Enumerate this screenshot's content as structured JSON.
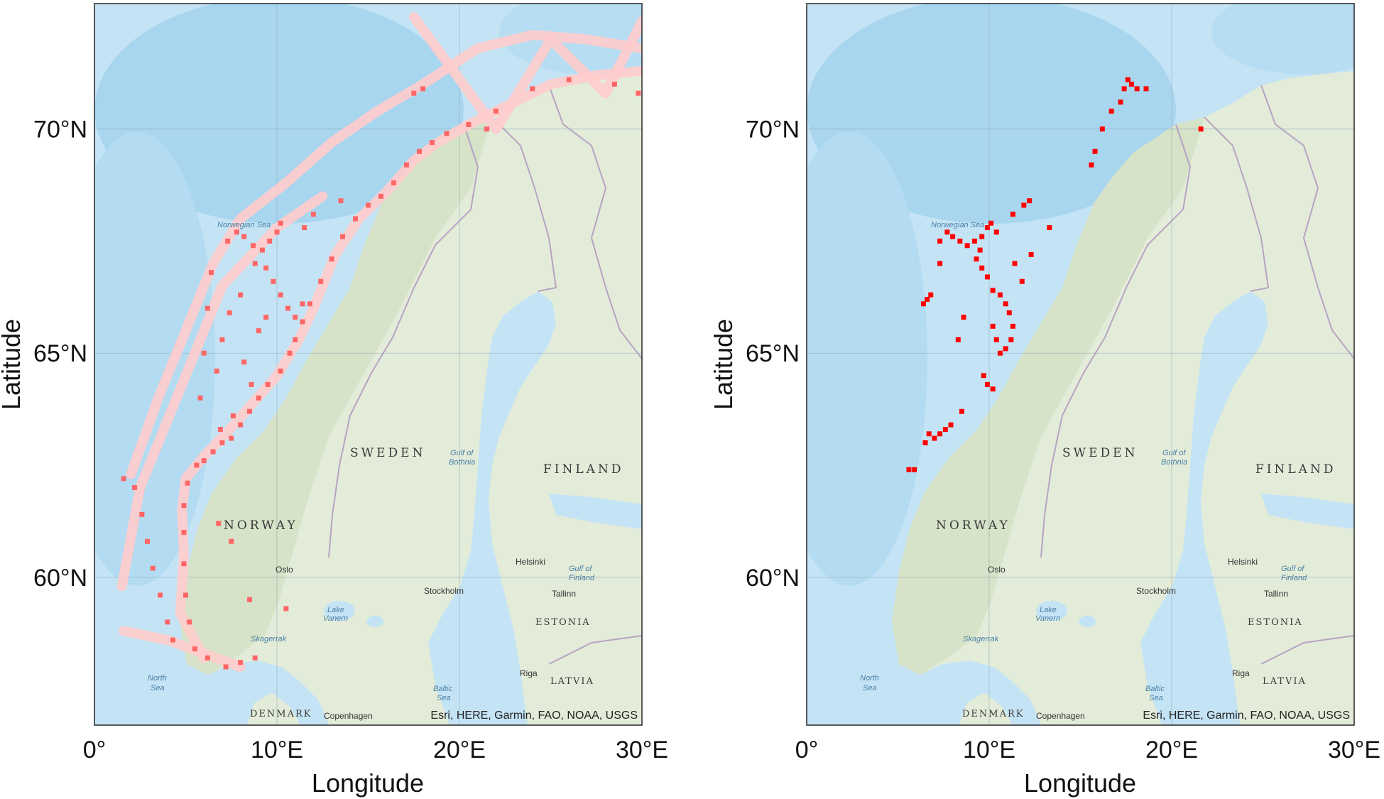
{
  "chart_data": [
    {
      "type": "scatter",
      "name": "left-map",
      "color": "#ff6666",
      "track_color": "#ffcccc",
      "xlabel": "Longitude",
      "ylabel": "Latitude",
      "xlim": [
        0,
        30
      ],
      "ylim": [
        56.7,
        72.8
      ],
      "xticks": [
        {
          "v": 0,
          "label": "0°"
        },
        {
          "v": 10,
          "label": "10°E"
        },
        {
          "v": 20,
          "label": "20°E"
        },
        {
          "v": 30,
          "label": "30°E"
        }
      ],
      "yticks": [
        {
          "v": 60,
          "label": "60°N"
        },
        {
          "v": 65,
          "label": "65°N"
        },
        {
          "v": 70,
          "label": "70°N"
        }
      ],
      "grid": true,
      "attribution": "Esri, HERE, Garmin, FAO, NOAA, USGS",
      "tracks": [
        [
          [
            6.0,
            58.2
          ],
          [
            4.7,
            59.2
          ],
          [
            4.9,
            60.5
          ],
          [
            4.8,
            61.5
          ],
          [
            5.0,
            62.2
          ],
          [
            6.0,
            62.7
          ],
          [
            7.2,
            63.2
          ],
          [
            8.5,
            63.8
          ],
          [
            10.0,
            64.5
          ],
          [
            11.2,
            65.3
          ],
          [
            12.0,
            66.0
          ],
          [
            13.2,
            67.2
          ],
          [
            14.5,
            68.0
          ],
          [
            16.0,
            68.6
          ],
          [
            17.5,
            69.3
          ],
          [
            18.8,
            69.7
          ],
          [
            20.5,
            70.1
          ],
          [
            22.5,
            70.5
          ],
          [
            25.0,
            71.0
          ],
          [
            27.5,
            71.2
          ],
          [
            30.0,
            71.3
          ]
        ],
        [
          [
            2.0,
            62.3
          ],
          [
            3.5,
            64.0
          ],
          [
            5.0,
            65.5
          ],
          [
            6.5,
            67.0
          ],
          [
            8.0,
            68.0
          ],
          [
            10.5,
            68.8
          ],
          [
            13.0,
            69.7
          ],
          [
            15.5,
            70.4
          ],
          [
            18.0,
            71.0
          ],
          [
            21.0,
            71.8
          ],
          [
            24.0,
            72.1
          ],
          [
            27.0,
            72.0
          ],
          [
            30.0,
            71.8
          ]
        ],
        [
          [
            1.5,
            59.8
          ],
          [
            2.5,
            62.0
          ],
          [
            5.5,
            65.0
          ],
          [
            7.0,
            66.5
          ],
          [
            10.0,
            67.8
          ],
          [
            12.5,
            68.5
          ]
        ],
        [
          [
            1.6,
            58.8
          ],
          [
            4.0,
            58.6
          ],
          [
            6.0,
            58.3
          ],
          [
            8.0,
            58.0
          ]
        ],
        [
          [
            17.5,
            72.5
          ],
          [
            22.0,
            70.0
          ],
          [
            25.0,
            72.0
          ],
          [
            28.0,
            70.8
          ],
          [
            30.0,
            72.4
          ]
        ]
      ],
      "points": [
        [
          5.5,
          58.4
        ],
        [
          6.2,
          58.2
        ],
        [
          7.2,
          58.0
        ],
        [
          8.0,
          58.1
        ],
        [
          8.8,
          58.2
        ],
        [
          5.2,
          59.0
        ],
        [
          5.0,
          59.6
        ],
        [
          4.9,
          60.3
        ],
        [
          4.9,
          61.0
        ],
        [
          4.9,
          61.6
        ],
        [
          5.1,
          62.1
        ],
        [
          5.6,
          62.5
        ],
        [
          6.0,
          62.6
        ],
        [
          6.5,
          62.8
        ],
        [
          7.0,
          63.0
        ],
        [
          7.5,
          63.1
        ],
        [
          8.0,
          63.4
        ],
        [
          8.5,
          63.7
        ],
        [
          9.0,
          64.0
        ],
        [
          9.5,
          64.3
        ],
        [
          10.2,
          64.6
        ],
        [
          10.7,
          65.0
        ],
        [
          11.0,
          65.3
        ],
        [
          11.4,
          65.7
        ],
        [
          11.8,
          66.1
        ],
        [
          12.4,
          66.6
        ],
        [
          13.0,
          67.1
        ],
        [
          13.6,
          67.6
        ],
        [
          14.3,
          68.0
        ],
        [
          15.0,
          68.3
        ],
        [
          15.7,
          68.5
        ],
        [
          16.4,
          68.8
        ],
        [
          17.1,
          69.2
        ],
        [
          17.8,
          69.5
        ],
        [
          18.5,
          69.7
        ],
        [
          19.3,
          69.9
        ],
        [
          20.5,
          70.1
        ],
        [
          21.5,
          70.0
        ],
        [
          17.5,
          70.8
        ],
        [
          18.0,
          70.9
        ],
        [
          22.0,
          70.4
        ],
        [
          24.0,
          70.9
        ],
        [
          26.0,
          71.1
        ],
        [
          28.5,
          71.0
        ],
        [
          29.8,
          70.8
        ],
        [
          7.3,
          67.5
        ],
        [
          7.8,
          67.7
        ],
        [
          8.2,
          67.6
        ],
        [
          8.7,
          67.4
        ],
        [
          9.2,
          67.3
        ],
        [
          9.6,
          67.5
        ],
        [
          10.0,
          67.7
        ],
        [
          10.2,
          67.9
        ],
        [
          8.8,
          67.0
        ],
        [
          9.4,
          66.9
        ],
        [
          9.8,
          66.6
        ],
        [
          10.2,
          66.3
        ],
        [
          10.6,
          66.0
        ],
        [
          11.0,
          65.8
        ],
        [
          11.4,
          66.1
        ],
        [
          8.0,
          66.3
        ],
        [
          7.4,
          65.9
        ],
        [
          7.0,
          65.3
        ],
        [
          6.7,
          64.6
        ],
        [
          8.2,
          64.8
        ],
        [
          8.6,
          64.3
        ],
        [
          9.0,
          65.5
        ],
        [
          9.4,
          65.8
        ],
        [
          6.4,
          66.8
        ],
        [
          6.2,
          66.0
        ],
        [
          6.0,
          65.0
        ],
        [
          5.8,
          64.0
        ],
        [
          6.9,
          63.3
        ],
        [
          7.6,
          63.6
        ],
        [
          1.6,
          62.2
        ],
        [
          2.2,
          62.0
        ],
        [
          2.6,
          61.4
        ],
        [
          2.9,
          60.8
        ],
        [
          3.2,
          60.2
        ],
        [
          3.6,
          59.6
        ],
        [
          4.0,
          59.0
        ],
        [
          4.3,
          58.6
        ],
        [
          12.0,
          68.1
        ],
        [
          13.5,
          68.4
        ],
        [
          11.5,
          67.8
        ],
        [
          8.5,
          59.5
        ],
        [
          10.5,
          59.3
        ],
        [
          6.8,
          61.2
        ],
        [
          7.5,
          60.8
        ]
      ]
    },
    {
      "type": "scatter",
      "name": "right-map",
      "color": "#ff0000",
      "xlabel": "Longitude",
      "ylabel": "Latitude",
      "xlim": [
        0,
        30
      ],
      "ylim": [
        56.7,
        72.8
      ],
      "xticks": [
        {
          "v": 0,
          "label": "0°"
        },
        {
          "v": 10,
          "label": "10°E"
        },
        {
          "v": 20,
          "label": "20°E"
        },
        {
          "v": 30,
          "label": "30°E"
        }
      ],
      "yticks": [
        {
          "v": 60,
          "label": "60°N"
        },
        {
          "v": 65,
          "label": "65°N"
        },
        {
          "v": 70,
          "label": "70°N"
        }
      ],
      "grid": true,
      "attribution": "Esri, HERE, Garmin, FAO, NOAA, USGS",
      "points": [
        [
          17.6,
          71.1
        ],
        [
          17.8,
          71.0
        ],
        [
          18.1,
          70.9
        ],
        [
          18.6,
          70.9
        ],
        [
          17.4,
          70.9
        ],
        [
          17.2,
          70.6
        ],
        [
          16.7,
          70.4
        ],
        [
          16.2,
          70.0
        ],
        [
          15.8,
          69.5
        ],
        [
          15.6,
          69.2
        ],
        [
          21.6,
          70.0
        ],
        [
          12.2,
          68.4
        ],
        [
          11.9,
          68.3
        ],
        [
          11.3,
          68.1
        ],
        [
          13.3,
          67.8
        ],
        [
          12.3,
          67.2
        ],
        [
          11.4,
          67.0
        ],
        [
          11.8,
          66.6
        ],
        [
          7.3,
          67.5
        ],
        [
          7.7,
          67.7
        ],
        [
          8.0,
          67.6
        ],
        [
          8.4,
          67.5
        ],
        [
          8.8,
          67.4
        ],
        [
          9.2,
          67.5
        ],
        [
          9.6,
          67.6
        ],
        [
          9.9,
          67.8
        ],
        [
          10.1,
          67.9
        ],
        [
          9.3,
          67.1
        ],
        [
          9.6,
          66.9
        ],
        [
          9.9,
          66.7
        ],
        [
          10.2,
          66.4
        ],
        [
          10.6,
          66.3
        ],
        [
          10.9,
          66.1
        ],
        [
          11.1,
          65.9
        ],
        [
          11.3,
          65.6
        ],
        [
          11.2,
          65.3
        ],
        [
          10.9,
          65.1
        ],
        [
          10.6,
          65.0
        ],
        [
          10.4,
          65.3
        ],
        [
          10.2,
          65.6
        ],
        [
          9.7,
          64.5
        ],
        [
          9.9,
          64.3
        ],
        [
          10.2,
          64.2
        ],
        [
          8.3,
          65.3
        ],
        [
          8.6,
          65.8
        ],
        [
          7.3,
          67.0
        ],
        [
          6.4,
          66.1
        ],
        [
          6.6,
          66.2
        ],
        [
          6.8,
          66.3
        ],
        [
          6.7,
          63.2
        ],
        [
          7.0,
          63.1
        ],
        [
          7.3,
          63.2
        ],
        [
          7.6,
          63.3
        ],
        [
          7.9,
          63.4
        ],
        [
          6.5,
          63.0
        ],
        [
          5.6,
          62.4
        ],
        [
          5.9,
          62.4
        ],
        [
          8.5,
          63.7
        ],
        [
          10.4,
          67.7
        ],
        [
          9.5,
          67.3
        ]
      ]
    }
  ],
  "map_labels": {
    "norway": "NORWAY",
    "sweden": "SWEDEN",
    "finland": "FINLAND",
    "estonia": "ESTONIA",
    "latvia": "LATVIA",
    "denmark": "DENMARK",
    "oslo": "Oslo",
    "stockholm": "Stockholm",
    "helsinki": "Helsinki",
    "tallinn": "Tallinn",
    "riga": "Riga",
    "copenhagen": "Copenhagen",
    "norwegian_sea": "Norwegian Sea",
    "north_sea_1": "North",
    "north_sea_2": "Sea",
    "skagerrak": "Skagerrak",
    "lake_vanern_1": "Lake",
    "lake_vanern_2": "Vanern",
    "gulf_bothnia_1": "Gulf of",
    "gulf_bothnia_2": "Bothnia",
    "gulf_finland_1": "Gulf of",
    "gulf_finland_2": "Finland",
    "baltic_1": "Baltic",
    "baltic_2": "Sea"
  }
}
